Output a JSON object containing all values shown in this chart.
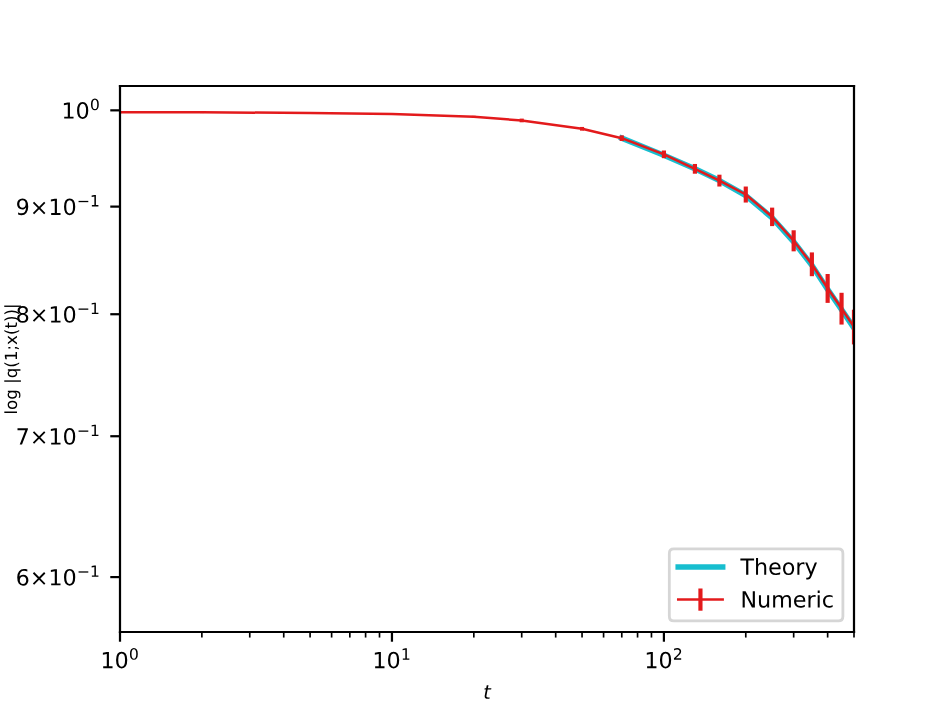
{
  "chart_data": {
    "type": "line",
    "xlabel": "t",
    "ylabel": "log |q(1;x(t))|",
    "log": "xy",
    "legend": "lower right",
    "xlim": [
      1,
      500
    ],
    "ylim": [
      0.565,
      1.027
    ],
    "xticks": [
      {
        "value": 1,
        "label": "10$^{0}$"
      },
      {
        "value": 10,
        "label": "10$^{1}$"
      },
      {
        "value": 100,
        "label": "10$^{2}$"
      }
    ],
    "yticks": [
      {
        "value": 0.6,
        "label": "6×10$^{−1}$"
      },
      {
        "value": 0.7,
        "label": "7×10$^{−1}$"
      },
      {
        "value": 0.8,
        "label": "8×10$^{−1}$"
      },
      {
        "value": 0.9,
        "label": "9×10$^{−1}$"
      },
      {
        "value": 1,
        "label": "10$^{0}$"
      }
    ],
    "x": [
      1,
      2,
      5,
      10,
      20,
      30,
      50,
      70,
      100,
      130,
      160,
      200,
      250,
      300,
      350,
      400,
      450,
      500
    ],
    "series": [
      {
        "name": "Theory",
        "color": "#17becf",
        "values": [
          null,
          null,
          null,
          null,
          null,
          null,
          null,
          0.97,
          0.952,
          0.938,
          0.926,
          0.911,
          0.889,
          0.866,
          0.844,
          0.822,
          0.804,
          0.788
        ]
      },
      {
        "name": "Numeric",
        "color": "#e31a1c",
        "values": [
          0.998,
          0.998,
          0.997,
          0.996,
          0.993,
          0.989,
          0.98,
          0.97,
          0.953,
          0.938,
          0.926,
          0.912,
          0.89,
          0.867,
          0.845,
          0.823,
          0.805,
          0.789
        ],
        "errors": [
          0.001,
          0.001,
          0.001,
          0.001,
          0.001,
          0.002,
          0.002,
          0.003,
          0.004,
          0.005,
          0.006,
          0.008,
          0.009,
          0.01,
          0.011,
          0.013,
          0.014,
          0.015
        ]
      }
    ]
  }
}
